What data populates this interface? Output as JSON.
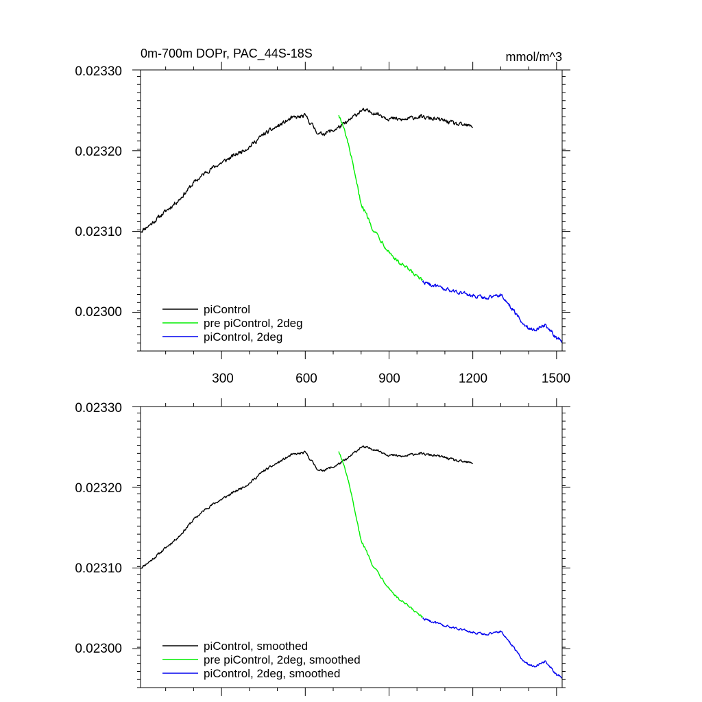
{
  "chart_data": [
    {
      "type": "line",
      "title": "0m-700m DOPr, PAC_44S-18S",
      "units": "mmol/m^3",
      "xlabel": "",
      "ylabel": "",
      "xlim": [
        10,
        1520
      ],
      "ylim": [
        0.022952,
        0.0233
      ],
      "x_ticks": [
        300,
        600,
        900,
        1200,
        1500
      ],
      "x_tick_labels": [
        "300",
        "600",
        "900",
        "1200",
        "1500"
      ],
      "y_ticks": [
        0.023,
        0.0231,
        0.0232,
        0.0233
      ],
      "y_tick_labels": [
        "0.02300",
        "0.02310",
        "0.02320",
        "0.02330"
      ],
      "legend_position": "bottom-left",
      "series": [
        {
          "name": "piControl",
          "color": "#000000",
          "x": [
            10,
            50,
            100,
            150,
            200,
            250,
            300,
            350,
            400,
            450,
            500,
            550,
            600,
            650,
            700,
            750,
            800,
            850,
            900,
            950,
            1000,
            1050,
            1100,
            1150,
            1200
          ],
          "y": [
            0.0231,
            0.02311,
            0.023125,
            0.02314,
            0.02316,
            0.023175,
            0.023185,
            0.023195,
            0.023205,
            0.02322,
            0.02323,
            0.02324,
            0.023243,
            0.02322,
            0.023225,
            0.023235,
            0.02325,
            0.023247,
            0.02324,
            0.023238,
            0.023242,
            0.02324,
            0.023237,
            0.023232,
            0.02323
          ]
        },
        {
          "name": "pre piControl, 2deg",
          "color": "#00ee00",
          "x": [
            720,
            740,
            760,
            780,
            800,
            820,
            840,
            870,
            900,
            930,
            960,
            990,
            1020
          ],
          "y": [
            0.023245,
            0.023225,
            0.0232,
            0.023165,
            0.023135,
            0.02312,
            0.023105,
            0.02309,
            0.023075,
            0.023063,
            0.023055,
            0.023047,
            0.023038
          ]
        },
        {
          "name": "piControl, 2deg",
          "color": "#0000ee",
          "x": [
            1020,
            1060,
            1100,
            1150,
            1200,
            1250,
            1300,
            1340,
            1380,
            1420,
            1460,
            1500,
            1520
          ],
          "y": [
            0.023038,
            0.023033,
            0.023028,
            0.023025,
            0.02302,
            0.023018,
            0.023022,
            0.023005,
            0.022985,
            0.022978,
            0.022985,
            0.022968,
            0.022965
          ]
        }
      ]
    },
    {
      "type": "line",
      "title": "",
      "xlabel": "",
      "ylabel": "",
      "xlim": [
        10,
        1520
      ],
      "ylim": [
        0.022952,
        0.0233
      ],
      "x_ticks": [
        300,
        600,
        900,
        1200,
        1500
      ],
      "y_ticks": [
        0.023,
        0.0231,
        0.0232,
        0.0233
      ],
      "y_tick_labels": [
        "0.02300",
        "0.02310",
        "0.02320",
        "0.02330"
      ],
      "legend_position": "bottom-left",
      "series": [
        {
          "name": "piControl, smoothed",
          "color": "#000000",
          "x": [
            10,
            50,
            100,
            150,
            200,
            250,
            300,
            350,
            400,
            450,
            500,
            550,
            600,
            650,
            700,
            750,
            800,
            850,
            900,
            950,
            1000,
            1050,
            1100,
            1150,
            1200
          ],
          "y": [
            0.0231,
            0.02311,
            0.023125,
            0.02314,
            0.02316,
            0.023175,
            0.023185,
            0.023195,
            0.023205,
            0.02322,
            0.02323,
            0.02324,
            0.023243,
            0.02322,
            0.023225,
            0.023235,
            0.02325,
            0.023247,
            0.02324,
            0.023238,
            0.023242,
            0.02324,
            0.023237,
            0.023232,
            0.02323
          ]
        },
        {
          "name": "pre piControl, 2deg, smoothed",
          "color": "#00ee00",
          "x": [
            720,
            740,
            760,
            780,
            800,
            820,
            840,
            870,
            900,
            930,
            960,
            990,
            1020
          ],
          "y": [
            0.023245,
            0.023225,
            0.0232,
            0.023165,
            0.023135,
            0.02312,
            0.023105,
            0.02309,
            0.023075,
            0.023063,
            0.023055,
            0.023047,
            0.023038
          ]
        },
        {
          "name": "piControl, 2deg, smoothed",
          "color": "#0000ee",
          "x": [
            1020,
            1060,
            1100,
            1150,
            1200,
            1250,
            1300,
            1340,
            1380,
            1420,
            1460,
            1500,
            1520
          ],
          "y": [
            0.023038,
            0.023033,
            0.023028,
            0.023025,
            0.02302,
            0.023018,
            0.023022,
            0.023005,
            0.022985,
            0.022978,
            0.022985,
            0.022968,
            0.022965
          ]
        }
      ]
    }
  ]
}
